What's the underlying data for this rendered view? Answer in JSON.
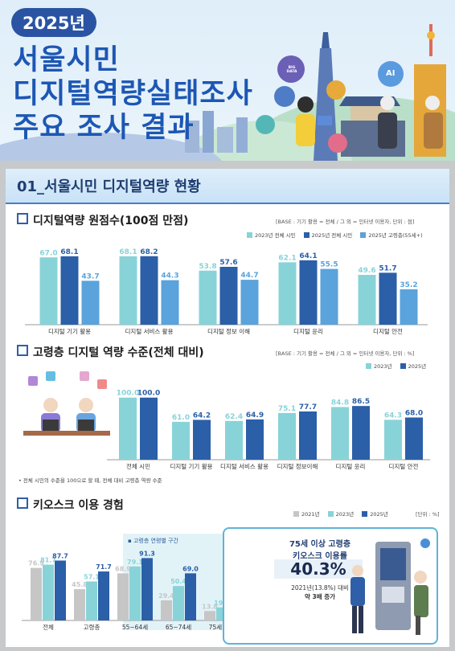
{
  "hero": {
    "year_badge": "2025년",
    "title_lines": [
      "서울시민",
      "디지털역량실태조사",
      "주요 조사 결과"
    ],
    "icon_labels": [
      "BIG DATA",
      "AI"
    ]
  },
  "section1": {
    "title": "01_서울시민 디지털역량 현황"
  },
  "chart1": {
    "title": "디지털역량 원점수(100점 만점)",
    "base_note": "[BASE : 기기 활용 = 전체 / 그 외 = 인터넷 이용자, 단위 : 점]",
    "colors": [
      "#88d3d8",
      "#2b5fa8",
      "#5aa3dc"
    ]
  },
  "chart2": {
    "title": "고령층 디지털 역량 수준(전체 대비)",
    "base_note": "[BASE : 기기 활용 = 전체 / 그 외 = 인터넷 이용자, 단위 : %]",
    "footnote": "• 전체 시민의 수준을 100으로 할 때, 전체 대비 고령층 역량 수준",
    "colors": [
      "#88d3d8",
      "#2b5fa8"
    ]
  },
  "chart3": {
    "title": "키오스크 이용 경험",
    "unit_note": "[단위 : %]",
    "band_label": "▪ 고령층 연령별 구간",
    "colors": [
      "#c6c6c6",
      "#88d3d8",
      "#2b5fa8"
    ],
    "callout": {
      "line1": "75세 이상 고령층",
      "line2": "키오스크 이용률",
      "value": "40.3%",
      "line3": "2021년(13.8%) 대비",
      "line4": "약 3배 증가"
    }
  },
  "chart_data": [
    {
      "type": "bar",
      "title": "디지털역량 원점수(100점 만점)",
      "categories": [
        "디지털 기기 활용",
        "디지털 서비스 활용",
        "디지털 정보 이해",
        "디지털 윤리",
        "디지털 안전"
      ],
      "series": [
        {
          "name": "2023년 전체 시민",
          "values": [
            67.0,
            68.1,
            53.8,
            62.1,
            49.6
          ]
        },
        {
          "name": "2025년 전체 시민",
          "values": [
            68.1,
            68.2,
            57.6,
            64.1,
            51.7
          ]
        },
        {
          "name": "2025년 고령층(55세+)",
          "values": [
            43.7,
            44.3,
            44.7,
            55.5,
            35.2
          ]
        }
      ],
      "ylim": [
        0,
        80
      ],
      "legend": "top-right"
    },
    {
      "type": "bar",
      "title": "고령층 디지털 역량 수준(전체 대비)",
      "categories": [
        "전체 시민",
        "디지털 기기 활용",
        "디지털 서비스 활용",
        "디지털 정보이해",
        "디지털 윤리",
        "디지털 안전"
      ],
      "series": [
        {
          "name": "2023년",
          "values": [
            100.0,
            61.0,
            62.4,
            75.1,
            84.8,
            64.3
          ]
        },
        {
          "name": "2025년",
          "values": [
            100.0,
            64.2,
            64.9,
            77.7,
            86.5,
            68.0
          ]
        }
      ],
      "ylim": [
        0,
        110
      ],
      "legend": "top-right"
    },
    {
      "type": "bar",
      "title": "키오스크 이용 경험",
      "categories": [
        "전체",
        "고령층",
        "55~64세",
        "65~74세",
        "75세 이상"
      ],
      "series": [
        {
          "name": "2021년",
          "values": [
            76.9,
            45.8,
            68.9,
            29.4,
            13.8
          ]
        },
        {
          "name": "2023년",
          "values": [
            81.7,
            57.1,
            79.1,
            50.4,
            19.1
          ]
        },
        {
          "name": "2025년",
          "values": [
            87.7,
            71.7,
            91.3,
            69.0,
            40.3
          ]
        }
      ],
      "ylim": [
        0,
        100
      ],
      "legend": "top-right"
    }
  ]
}
